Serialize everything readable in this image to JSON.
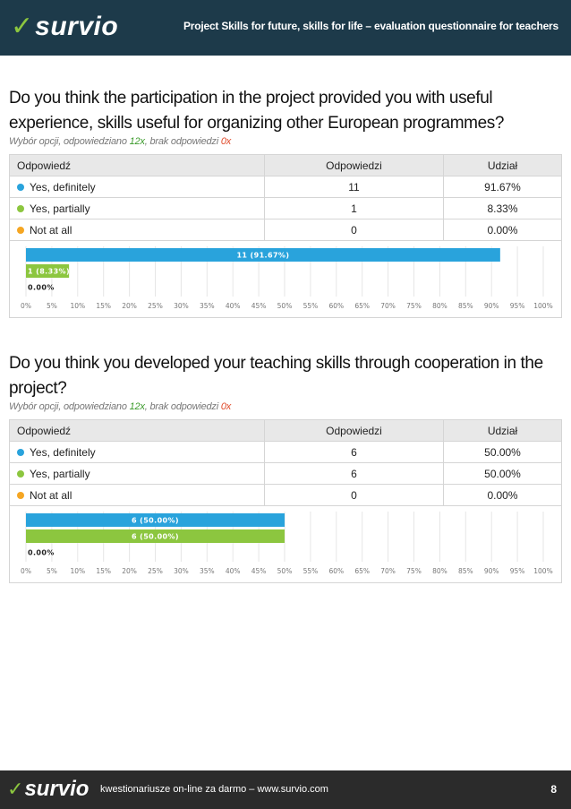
{
  "header": {
    "logo_check": "✓",
    "logo_text": "survio",
    "title": "Project Skills for future, skills for life – evaluation questionnaire for teachers"
  },
  "questions": [
    {
      "title": "Do you think the participation in the project provided you with useful experience, skills useful for organizing other European programmes?",
      "meta_prefix": "Wybór opcji, odpowiedziano ",
      "answered": "12x",
      "meta_mid": ", brak odpowiedzi ",
      "unanswered": "0x",
      "columns": [
        "Odpowiedź",
        "Odpowiedzi",
        "Udział"
      ],
      "rows": [
        {
          "label": "Yes, definitely",
          "count": "11",
          "share": "91.67%",
          "color": "#29a3dc"
        },
        {
          "label": "Yes, partially",
          "count": "1",
          "share": "8.33%",
          "color": "#8cc63f"
        },
        {
          "label": "Not at all",
          "count": "0",
          "share": "0.00%",
          "color": "#f5a623"
        }
      ]
    },
    {
      "title": "Do you think you developed your teaching skills through cooperation in the project?",
      "meta_prefix": "Wybór opcji, odpowiedziano ",
      "answered": "12x",
      "meta_mid": ", brak odpowiedzi ",
      "unanswered": "0x",
      "columns": [
        "Odpowiedź",
        "Odpowiedzi",
        "Udział"
      ],
      "rows": [
        {
          "label": "Yes, definitely",
          "count": "6",
          "share": "50.00%",
          "color": "#29a3dc"
        },
        {
          "label": "Yes, partially",
          "count": "6",
          "share": "50.00%",
          "color": "#8cc63f"
        },
        {
          "label": "Not at all",
          "count": "0",
          "share": "0.00%",
          "color": "#f5a623"
        }
      ]
    }
  ],
  "chart_data": [
    {
      "type": "bar",
      "orientation": "horizontal",
      "categories": [
        "Yes, definitely",
        "Yes, partially",
        "Not at all"
      ],
      "values": [
        91.67,
        8.33,
        0.0
      ],
      "data_labels": [
        "11 (91.67%)",
        "1 (8.33%)",
        "0.00%"
      ],
      "colors": [
        "#29a3dc",
        "#8cc63f",
        "#f5a623"
      ],
      "xlim": [
        0,
        100
      ],
      "xticks": [
        "0%",
        "5%",
        "10%",
        "15%",
        "20%",
        "25%",
        "30%",
        "35%",
        "40%",
        "45%",
        "50%",
        "55%",
        "60%",
        "65%",
        "70%",
        "75%",
        "80%",
        "85%",
        "90%",
        "95%",
        "100%"
      ],
      "grid": true
    },
    {
      "type": "bar",
      "orientation": "horizontal",
      "categories": [
        "Yes, definitely",
        "Yes, partially",
        "Not at all"
      ],
      "values": [
        50.0,
        50.0,
        0.0
      ],
      "data_labels": [
        "6 (50.00%)",
        "6 (50.00%)",
        "0.00%"
      ],
      "colors": [
        "#29a3dc",
        "#8cc63f",
        "#f5a623"
      ],
      "xlim": [
        0,
        100
      ],
      "xticks": [
        "0%",
        "5%",
        "10%",
        "15%",
        "20%",
        "25%",
        "30%",
        "35%",
        "40%",
        "45%",
        "50%",
        "55%",
        "60%",
        "65%",
        "70%",
        "75%",
        "80%",
        "85%",
        "90%",
        "95%",
        "100%"
      ],
      "grid": true
    }
  ],
  "footer": {
    "logo_check": "✓",
    "logo_text": "survio",
    "text": "kwestionariusze on-line za darmo – www.survio.com",
    "page": "8"
  }
}
